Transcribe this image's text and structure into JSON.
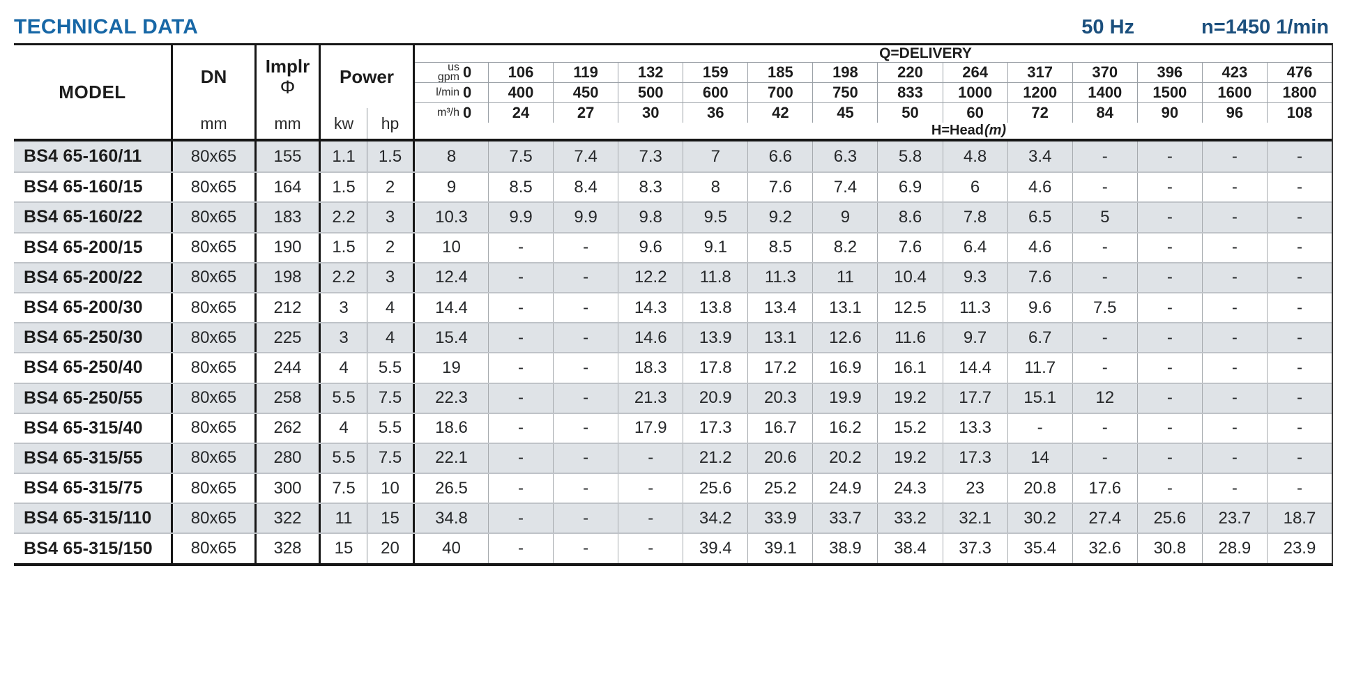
{
  "page": {
    "title": "TECHNICAL DATA",
    "frequency": "50 Hz",
    "speed": "n=1450 1/min"
  },
  "table": {
    "header": {
      "model": "MODEL",
      "dn": "DN",
      "dn_unit": "mm",
      "implr_line1": "Implr",
      "implr_line2": "Φ",
      "implr_unit": "mm",
      "power": "Power",
      "power_kw": "kw",
      "power_hp": "hp",
      "delivery_title": "Q=DELIVERY",
      "head_label": "H=Head",
      "head_unit": "(m)",
      "unit_rows": [
        {
          "label_lines": [
            "us",
            "gpm"
          ],
          "values": [
            "0",
            "106",
            "119",
            "132",
            "159",
            "185",
            "198",
            "220",
            "264",
            "317",
            "370",
            "396",
            "423",
            "476"
          ]
        },
        {
          "label_lines": [
            "l/min"
          ],
          "values": [
            "0",
            "400",
            "450",
            "500",
            "600",
            "700",
            "750",
            "833",
            "1000",
            "1200",
            "1400",
            "1500",
            "1600",
            "1800"
          ]
        },
        {
          "label_lines": [
            "m³/h"
          ],
          "values": [
            "0",
            "24",
            "27",
            "30",
            "36",
            "42",
            "45",
            "50",
            "60",
            "72",
            "84",
            "90",
            "96",
            "108"
          ]
        }
      ]
    },
    "rows": [
      {
        "model": "BS4 65-160/11",
        "dn": "80x65",
        "implr": "155",
        "kw": "1.1",
        "hp": "1.5",
        "head": [
          "8",
          "7.5",
          "7.4",
          "7.3",
          "7",
          "6.6",
          "6.3",
          "5.8",
          "4.8",
          "3.4",
          "-",
          "-",
          "-",
          "-"
        ]
      },
      {
        "model": "BS4 65-160/15",
        "dn": "80x65",
        "implr": "164",
        "kw": "1.5",
        "hp": "2",
        "head": [
          "9",
          "8.5",
          "8.4",
          "8.3",
          "8",
          "7.6",
          "7.4",
          "6.9",
          "6",
          "4.6",
          "-",
          "-",
          "-",
          "-"
        ]
      },
      {
        "model": "BS4 65-160/22",
        "dn": "80x65",
        "implr": "183",
        "kw": "2.2",
        "hp": "3",
        "head": [
          "10.3",
          "9.9",
          "9.9",
          "9.8",
          "9.5",
          "9.2",
          "9",
          "8.6",
          "7.8",
          "6.5",
          "5",
          "-",
          "-",
          "-"
        ]
      },
      {
        "model": "BS4 65-200/15",
        "dn": "80x65",
        "implr": "190",
        "kw": "1.5",
        "hp": "2",
        "head": [
          "10",
          "-",
          "-",
          "9.6",
          "9.1",
          "8.5",
          "8.2",
          "7.6",
          "6.4",
          "4.6",
          "-",
          "-",
          "-",
          "-"
        ]
      },
      {
        "model": "BS4 65-200/22",
        "dn": "80x65",
        "implr": "198",
        "kw": "2.2",
        "hp": "3",
        "head": [
          "12.4",
          "-",
          "-",
          "12.2",
          "11.8",
          "11.3",
          "11",
          "10.4",
          "9.3",
          "7.6",
          "-",
          "-",
          "-",
          "-"
        ]
      },
      {
        "model": "BS4 65-200/30",
        "dn": "80x65",
        "implr": "212",
        "kw": "3",
        "hp": "4",
        "head": [
          "14.4",
          "-",
          "-",
          "14.3",
          "13.8",
          "13.4",
          "13.1",
          "12.5",
          "11.3",
          "9.6",
          "7.5",
          "-",
          "-",
          "-"
        ]
      },
      {
        "model": "BS4 65-250/30",
        "dn": "80x65",
        "implr": "225",
        "kw": "3",
        "hp": "4",
        "head": [
          "15.4",
          "-",
          "-",
          "14.6",
          "13.9",
          "13.1",
          "12.6",
          "11.6",
          "9.7",
          "6.7",
          "-",
          "-",
          "-",
          "-"
        ]
      },
      {
        "model": "BS4 65-250/40",
        "dn": "80x65",
        "implr": "244",
        "kw": "4",
        "hp": "5.5",
        "head": [
          "19",
          "-",
          "-",
          "18.3",
          "17.8",
          "17.2",
          "16.9",
          "16.1",
          "14.4",
          "11.7",
          "-",
          "-",
          "-",
          "-"
        ]
      },
      {
        "model": "BS4 65-250/55",
        "dn": "80x65",
        "implr": "258",
        "kw": "5.5",
        "hp": "7.5",
        "head": [
          "22.3",
          "-",
          "-",
          "21.3",
          "20.9",
          "20.3",
          "19.9",
          "19.2",
          "17.7",
          "15.1",
          "12",
          "-",
          "-",
          "-"
        ]
      },
      {
        "model": "BS4 65-315/40",
        "dn": "80x65",
        "implr": "262",
        "kw": "4",
        "hp": "5.5",
        "head": [
          "18.6",
          "-",
          "-",
          "17.9",
          "17.3",
          "16.7",
          "16.2",
          "15.2",
          "13.3",
          "-",
          "-",
          "-",
          "-",
          "-"
        ]
      },
      {
        "model": "BS4 65-315/55",
        "dn": "80x65",
        "implr": "280",
        "kw": "5.5",
        "hp": "7.5",
        "head": [
          "22.1",
          "-",
          "-",
          "-",
          "21.2",
          "20.6",
          "20.2",
          "19.2",
          "17.3",
          "14",
          "-",
          "-",
          "-",
          "-"
        ]
      },
      {
        "model": "BS4 65-315/75",
        "dn": "80x65",
        "implr": "300",
        "kw": "7.5",
        "hp": "10",
        "head": [
          "26.5",
          "-",
          "-",
          "-",
          "25.6",
          "25.2",
          "24.9",
          "24.3",
          "23",
          "20.8",
          "17.6",
          "-",
          "-",
          "-"
        ]
      },
      {
        "model": "BS4 65-315/110",
        "dn": "80x65",
        "implr": "322",
        "kw": "11",
        "hp": "15",
        "head": [
          "34.8",
          "-",
          "-",
          "-",
          "34.2",
          "33.9",
          "33.7",
          "33.2",
          "32.1",
          "30.2",
          "27.4",
          "25.6",
          "23.7",
          "18.7"
        ]
      },
      {
        "model": "BS4 65-315/150",
        "dn": "80x65",
        "implr": "328",
        "kw": "15",
        "hp": "20",
        "head": [
          "40",
          "-",
          "-",
          "-",
          "39.4",
          "39.1",
          "38.9",
          "38.4",
          "37.3",
          "35.4",
          "32.6",
          "30.8",
          "28.9",
          "23.9"
        ]
      }
    ]
  }
}
